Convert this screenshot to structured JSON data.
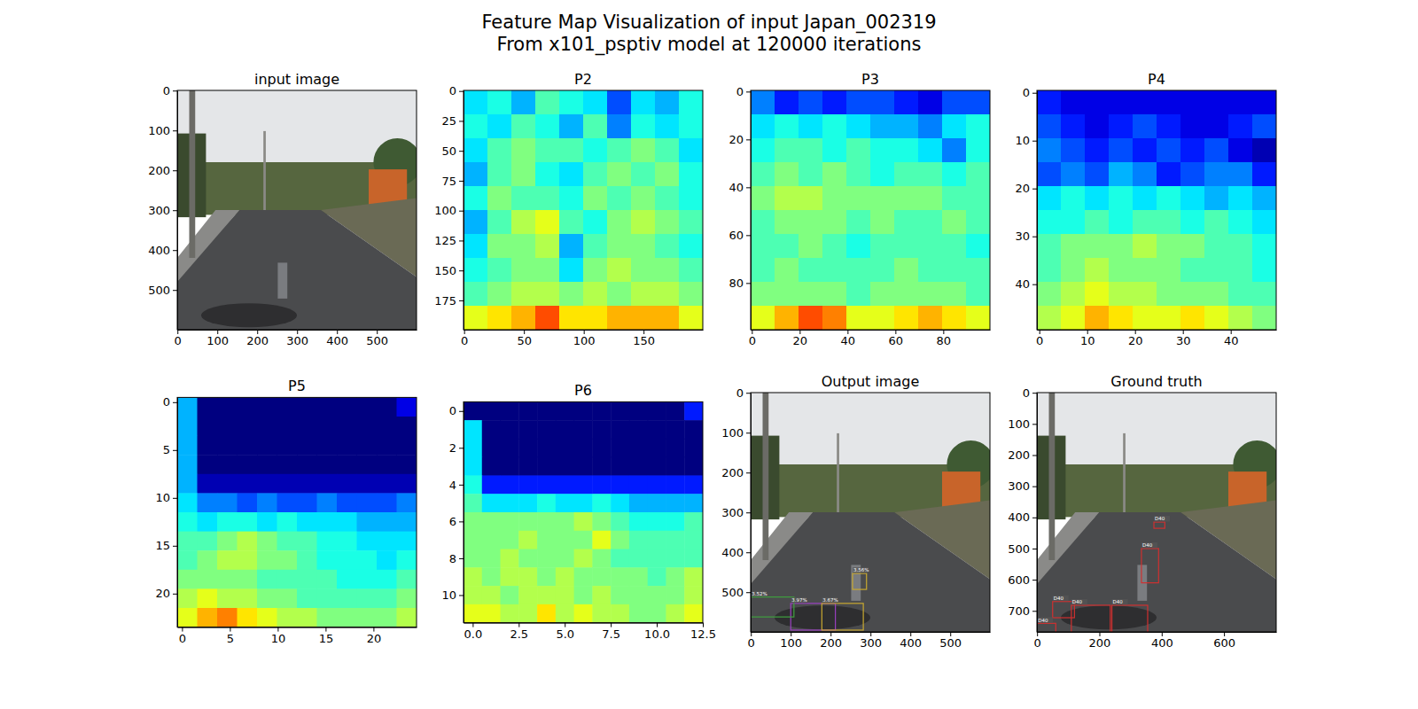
{
  "title": "Feature Map Visualization of input Japan_002319\nFrom x101_psptiv model at 120000 iterations",
  "chart_data": [
    {
      "type": "image",
      "title": "input image",
      "xlim": [
        -0.5,
        599.5
      ],
      "ylim": [
        599.5,
        -0.5
      ],
      "xticks": [
        0,
        100,
        200,
        300,
        400,
        500
      ],
      "yticks": [
        0,
        100,
        200,
        300,
        400,
        500
      ]
    },
    {
      "type": "heatmap",
      "title": "P2",
      "xlim": [
        -0.5,
        199.5
      ],
      "ylim": [
        199.5,
        -0.5
      ],
      "xticks": [
        0,
        50,
        100,
        150
      ],
      "yticks": [
        0,
        25,
        50,
        75,
        100,
        125,
        150,
        175
      ],
      "zlim": [
        0,
        1
      ],
      "cells": [
        [
          0.35,
          0.4,
          0.3,
          0.45,
          0.4,
          0.35,
          0.2,
          0.35,
          0.3,
          0.4
        ],
        [
          0.4,
          0.35,
          0.45,
          0.4,
          0.3,
          0.45,
          0.25,
          0.4,
          0.35,
          0.4
        ],
        [
          0.35,
          0.45,
          0.5,
          0.45,
          0.45,
          0.4,
          0.45,
          0.5,
          0.45,
          0.35
        ],
        [
          0.3,
          0.45,
          0.5,
          0.4,
          0.35,
          0.45,
          0.5,
          0.45,
          0.5,
          0.4
        ],
        [
          0.4,
          0.5,
          0.45,
          0.45,
          0.4,
          0.5,
          0.45,
          0.5,
          0.45,
          0.4
        ],
        [
          0.3,
          0.45,
          0.55,
          0.6,
          0.45,
          0.4,
          0.5,
          0.55,
          0.5,
          0.45
        ],
        [
          0.35,
          0.5,
          0.5,
          0.55,
          0.3,
          0.45,
          0.5,
          0.5,
          0.45,
          0.4
        ],
        [
          0.4,
          0.45,
          0.5,
          0.5,
          0.35,
          0.5,
          0.55,
          0.5,
          0.5,
          0.45
        ],
        [
          0.45,
          0.5,
          0.55,
          0.55,
          0.5,
          0.55,
          0.5,
          0.55,
          0.55,
          0.5
        ],
        [
          0.6,
          0.65,
          0.7,
          0.8,
          0.65,
          0.65,
          0.7,
          0.7,
          0.7,
          0.6
        ]
      ]
    },
    {
      "type": "heatmap",
      "title": "P3",
      "xlim": [
        -0.5,
        99.5
      ],
      "ylim": [
        99.5,
        -0.5
      ],
      "xticks": [
        0,
        20,
        40,
        60,
        80
      ],
      "yticks": [
        0,
        20,
        40,
        60,
        80
      ],
      "zlim": [
        0,
        1
      ],
      "cells": [
        [
          0.25,
          0.15,
          0.2,
          0.15,
          0.2,
          0.2,
          0.15,
          0.1,
          0.2,
          0.2
        ],
        [
          0.35,
          0.4,
          0.35,
          0.4,
          0.35,
          0.3,
          0.3,
          0.25,
          0.35,
          0.4
        ],
        [
          0.4,
          0.45,
          0.45,
          0.4,
          0.45,
          0.4,
          0.4,
          0.35,
          0.25,
          0.4
        ],
        [
          0.45,
          0.5,
          0.45,
          0.5,
          0.45,
          0.4,
          0.45,
          0.45,
          0.4,
          0.45
        ],
        [
          0.5,
          0.55,
          0.55,
          0.5,
          0.5,
          0.5,
          0.5,
          0.5,
          0.45,
          0.45
        ],
        [
          0.45,
          0.5,
          0.5,
          0.5,
          0.45,
          0.5,
          0.45,
          0.45,
          0.5,
          0.45
        ],
        [
          0.45,
          0.45,
          0.5,
          0.45,
          0.4,
          0.45,
          0.45,
          0.45,
          0.45,
          0.4
        ],
        [
          0.45,
          0.5,
          0.45,
          0.45,
          0.45,
          0.45,
          0.5,
          0.45,
          0.45,
          0.45
        ],
        [
          0.5,
          0.5,
          0.5,
          0.5,
          0.45,
          0.5,
          0.5,
          0.5,
          0.5,
          0.45
        ],
        [
          0.6,
          0.7,
          0.8,
          0.75,
          0.6,
          0.6,
          0.65,
          0.7,
          0.65,
          0.6
        ]
      ]
    },
    {
      "type": "heatmap",
      "title": "P4",
      "xlim": [
        -0.5,
        49.5
      ],
      "ylim": [
        49.5,
        -0.5
      ],
      "xticks": [
        0,
        10,
        20,
        30,
        40
      ],
      "yticks": [
        0,
        10,
        20,
        30,
        40
      ],
      "zlim": [
        0,
        1
      ],
      "cells": [
        [
          0.15,
          0.1,
          0.1,
          0.1,
          0.1,
          0.1,
          0.1,
          0.1,
          0.1,
          0.1
        ],
        [
          0.2,
          0.15,
          0.1,
          0.15,
          0.2,
          0.15,
          0.1,
          0.1,
          0.15,
          0.2
        ],
        [
          0.25,
          0.2,
          0.15,
          0.2,
          0.15,
          0.2,
          0.15,
          0.2,
          0.1,
          0.05
        ],
        [
          0.2,
          0.25,
          0.2,
          0.3,
          0.25,
          0.15,
          0.2,
          0.25,
          0.25,
          0.15
        ],
        [
          0.35,
          0.4,
          0.35,
          0.4,
          0.35,
          0.4,
          0.35,
          0.3,
          0.35,
          0.3
        ],
        [
          0.4,
          0.4,
          0.45,
          0.4,
          0.45,
          0.45,
          0.4,
          0.45,
          0.4,
          0.35
        ],
        [
          0.45,
          0.5,
          0.5,
          0.5,
          0.55,
          0.5,
          0.5,
          0.45,
          0.45,
          0.4
        ],
        [
          0.45,
          0.5,
          0.55,
          0.5,
          0.5,
          0.5,
          0.45,
          0.45,
          0.45,
          0.4
        ],
        [
          0.5,
          0.55,
          0.6,
          0.55,
          0.55,
          0.5,
          0.5,
          0.5,
          0.45,
          0.45
        ],
        [
          0.55,
          0.6,
          0.7,
          0.65,
          0.6,
          0.6,
          0.65,
          0.6,
          0.55,
          0.5
        ]
      ]
    },
    {
      "type": "heatmap",
      "title": "P5",
      "xlim": [
        -0.5,
        24.5
      ],
      "ylim": [
        23.5,
        -0.5
      ],
      "xticks": [
        0,
        5,
        10,
        15,
        20
      ],
      "yticks": [
        0,
        5,
        10,
        15,
        20
      ],
      "zlim": [
        0,
        1
      ],
      "cells": [
        [
          0.3,
          0,
          0,
          0,
          0,
          0,
          0,
          0,
          0,
          0,
          0,
          0.1
        ],
        [
          0.3,
          0,
          0,
          0,
          0,
          0,
          0,
          0,
          0,
          0,
          0,
          0
        ],
        [
          0.3,
          0,
          0,
          0,
          0,
          0,
          0,
          0,
          0,
          0,
          0,
          0
        ],
        [
          0.3,
          0,
          0,
          0,
          0,
          0,
          0,
          0,
          0,
          0,
          0,
          0
        ],
        [
          0.3,
          0.05,
          0.05,
          0.05,
          0.05,
          0.05,
          0.05,
          0.05,
          0.05,
          0.05,
          0.05,
          0.05
        ],
        [
          0.35,
          0.25,
          0.25,
          0.2,
          0.25,
          0.2,
          0.2,
          0.25,
          0.2,
          0.2,
          0.2,
          0.25
        ],
        [
          0.4,
          0.35,
          0.4,
          0.4,
          0.35,
          0.4,
          0.35,
          0.35,
          0.35,
          0.3,
          0.3,
          0.3
        ],
        [
          0.45,
          0.45,
          0.5,
          0.55,
          0.5,
          0.45,
          0.45,
          0.4,
          0.4,
          0.35,
          0.35,
          0.35
        ],
        [
          0.45,
          0.5,
          0.55,
          0.55,
          0.5,
          0.5,
          0.45,
          0.4,
          0.4,
          0.4,
          0.35,
          0.4
        ],
        [
          0.5,
          0.5,
          0.5,
          0.5,
          0.45,
          0.45,
          0.45,
          0.45,
          0.4,
          0.4,
          0.4,
          0.45
        ],
        [
          0.55,
          0.6,
          0.55,
          0.55,
          0.5,
          0.5,
          0.45,
          0.45,
          0.45,
          0.45,
          0.45,
          0.5
        ],
        [
          0.6,
          0.7,
          0.75,
          0.65,
          0.6,
          0.55,
          0.55,
          0.5,
          0.5,
          0.5,
          0.5,
          0.55
        ]
      ]
    },
    {
      "type": "heatmap",
      "title": "P6",
      "xlim": [
        -0.5,
        12.5
      ],
      "ylim": [
        11.5,
        -0.5
      ],
      "xticks": [
        {
          "value": 0,
          "label": "0.0"
        },
        {
          "value": 2.5,
          "label": "2.5"
        },
        {
          "value": 5,
          "label": "5.0"
        },
        {
          "value": 7.5,
          "label": "7.5"
        },
        {
          "value": 10,
          "label": "10.0"
        },
        {
          "value": 12.5,
          "label": "12.5"
        }
      ],
      "yticks": [
        0,
        2,
        4,
        6,
        8,
        10
      ],
      "zlim": [
        0,
        1
      ],
      "cells": [
        [
          0,
          0,
          0,
          0,
          0,
          0,
          0,
          0,
          0,
          0,
          0,
          0,
          0.15
        ],
        [
          0.35,
          0,
          0,
          0,
          0,
          0,
          0,
          0,
          0,
          0,
          0,
          0,
          0
        ],
        [
          0.35,
          0,
          0,
          0,
          0,
          0,
          0,
          0,
          0,
          0,
          0,
          0,
          0
        ],
        [
          0.35,
          0,
          0,
          0,
          0,
          0,
          0,
          0,
          0,
          0,
          0,
          0,
          0
        ],
        [
          0.4,
          0.15,
          0.15,
          0.15,
          0.15,
          0.15,
          0.15,
          0.15,
          0.15,
          0.15,
          0.15,
          0.15,
          0.15
        ],
        [
          0.45,
          0.35,
          0.35,
          0.35,
          0.4,
          0.35,
          0.35,
          0.4,
          0.35,
          0.3,
          0.3,
          0.3,
          0.3
        ],
        [
          0.5,
          0.5,
          0.5,
          0.5,
          0.5,
          0.5,
          0.55,
          0.5,
          0.45,
          0.4,
          0.4,
          0.4,
          0.45
        ],
        [
          0.5,
          0.5,
          0.5,
          0.55,
          0.5,
          0.5,
          0.5,
          0.6,
          0.5,
          0.45,
          0.45,
          0.45,
          0.45
        ],
        [
          0.5,
          0.5,
          0.55,
          0.5,
          0.5,
          0.5,
          0.55,
          0.5,
          0.45,
          0.45,
          0.45,
          0.45,
          0.45
        ],
        [
          0.55,
          0.5,
          0.55,
          0.55,
          0.5,
          0.55,
          0.5,
          0.5,
          0.5,
          0.5,
          0.45,
          0.5,
          0.55
        ],
        [
          0.55,
          0.55,
          0.5,
          0.55,
          0.55,
          0.55,
          0.5,
          0.55,
          0.5,
          0.5,
          0.5,
          0.5,
          0.55
        ],
        [
          0.6,
          0.6,
          0.55,
          0.55,
          0.65,
          0.55,
          0.6,
          0.55,
          0.55,
          0.5,
          0.5,
          0.55,
          0.6
        ]
      ]
    },
    {
      "type": "image",
      "title": "Output image",
      "xlim": [
        -0.5,
        599.5
      ],
      "ylim": [
        599.5,
        -0.5
      ],
      "xticks": [
        0,
        100,
        200,
        300,
        400,
        500
      ],
      "yticks": [
        0,
        100,
        200,
        300,
        400,
        500
      ],
      "boxes": [
        {
          "label": "3.56%",
          "color": "#c8a830",
          "x0": 255,
          "y0": 453,
          "x1": 290,
          "y1": 493
        },
        {
          "label": "3.97%",
          "color": "#9a40c0",
          "x0": 100,
          "y0": 528,
          "x1": 212,
          "y1": 595
        },
        {
          "label": "3.67%",
          "color": "#c8a830",
          "x0": 178,
          "y0": 528,
          "x1": 282,
          "y1": 595
        },
        {
          "label": "3.52%",
          "color": "#40a040",
          "x0": 0,
          "y0": 512,
          "x1": 108,
          "y1": 562
        }
      ]
    },
    {
      "type": "image",
      "title": "Ground truth",
      "xlim": [
        -0.5,
        767.5
      ],
      "ylim": [
        767.5,
        -0.5
      ],
      "xticks": [
        0,
        200,
        400,
        600
      ],
      "yticks": [
        0,
        100,
        200,
        300,
        400,
        500,
        600,
        700
      ],
      "boxes": [
        {
          "label": "D40",
          "color": "#d03030",
          "x0": 375,
          "y0": 415,
          "x1": 410,
          "y1": 435
        },
        {
          "label": "D40",
          "color": "#d03030",
          "x0": 335,
          "y0": 500,
          "x1": 390,
          "y1": 610
        },
        {
          "label": "D40",
          "color": "#d03030",
          "x0": 50,
          "y0": 670,
          "x1": 120,
          "y1": 722
        },
        {
          "label": "D40",
          "color": "#d03030",
          "x0": 110,
          "y0": 682,
          "x1": 235,
          "y1": 775
        },
        {
          "label": "D40",
          "color": "#d03030",
          "x0": 240,
          "y0": 682,
          "x1": 355,
          "y1": 775
        },
        {
          "label": "D40",
          "color": "#d03030",
          "x0": 0,
          "y0": 740,
          "x1": 60,
          "y1": 775
        }
      ]
    }
  ]
}
